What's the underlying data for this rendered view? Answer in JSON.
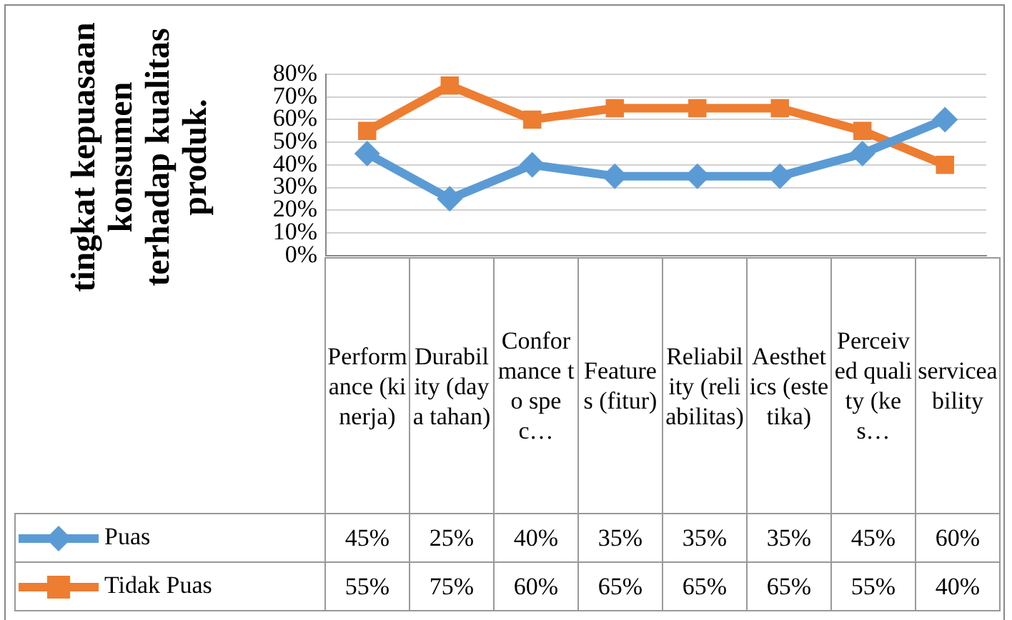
{
  "chart_data": {
    "type": "line",
    "ylabel": "tingkat kepuasaan konsumen terhadap kualitas produk.",
    "categories": [
      "Performance (kinerja)",
      "Durability (daya tahan)",
      "Conformance to spec…",
      "Features (fitur)",
      "Reliability (reliabilitas)",
      "Aesthetics (estetika)",
      "Perceived quality (kes…",
      "serviceability"
    ],
    "series": [
      {
        "name": "Puas",
        "color": "#5b9bd5",
        "marker": "diamond",
        "values": [
          45,
          25,
          40,
          35,
          35,
          35,
          45,
          60
        ],
        "value_labels": [
          "45%",
          "25%",
          "40%",
          "35%",
          "35%",
          "35%",
          "45%",
          "60%"
        ]
      },
      {
        "name": "Tidak Puas",
        "color": "#ed7d31",
        "marker": "square",
        "values": [
          55,
          75,
          60,
          65,
          65,
          65,
          55,
          40
        ],
        "value_labels": [
          "55%",
          "75%",
          "60%",
          "65%",
          "65%",
          "65%",
          "55%",
          "40%"
        ]
      }
    ],
    "ylim": [
      0,
      80
    ],
    "yticks": [
      {
        "value": 0,
        "label": "0%"
      },
      {
        "value": 10,
        "label": "10%"
      },
      {
        "value": 20,
        "label": "20%"
      },
      {
        "value": 30,
        "label": "30%"
      },
      {
        "value": 40,
        "label": "40%"
      },
      {
        "value": 50,
        "label": "50%"
      },
      {
        "value": 60,
        "label": "60%"
      },
      {
        "value": 70,
        "label": "70%"
      },
      {
        "value": 80,
        "label": "80%"
      }
    ],
    "grid": "y",
    "legend": "bottom",
    "line_style": "solid"
  }
}
